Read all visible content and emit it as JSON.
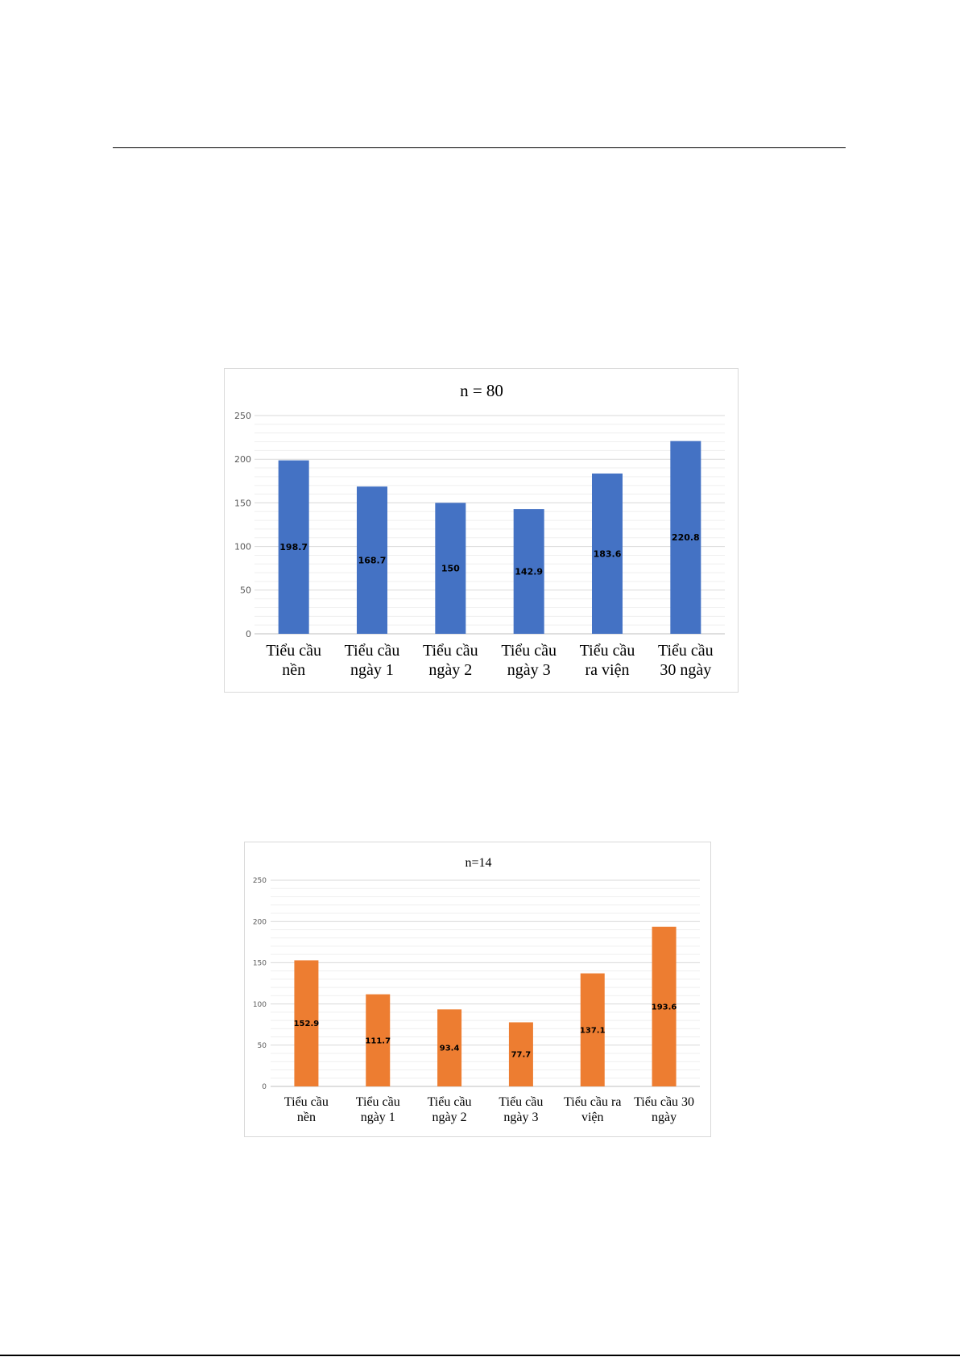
{
  "chart_data": [
    {
      "type": "bar",
      "title": "n = 80",
      "categories": [
        "Tiểu cầu nền",
        "Tiểu cầu ngày 1",
        "Tiểu cầu ngày 2",
        "Tiểu cầu ngày 3",
        "Tiểu cầu ra viện",
        "Tiểu cầu 30 ngày"
      ],
      "category_lines": [
        [
          "Tiểu cầu",
          "nền"
        ],
        [
          "Tiểu cầu",
          "ngày 1"
        ],
        [
          "Tiểu cầu",
          "ngày 2"
        ],
        [
          "Tiểu cầu",
          "ngày 3"
        ],
        [
          "Tiểu cầu",
          "ra viện"
        ],
        [
          "Tiểu cầu",
          "30 ngày"
        ]
      ],
      "values": [
        198.7,
        168.7,
        150,
        142.9,
        183.6,
        220.8
      ],
      "value_labels": [
        "198.7",
        "168.7",
        "150",
        "142.9",
        "183.6",
        "220.8"
      ],
      "ylim": [
        0,
        250
      ],
      "yticks": [
        0,
        50,
        100,
        150,
        200,
        250
      ],
      "grid": true,
      "bar_color": "#4472C4",
      "xlabel": "",
      "ylabel": ""
    },
    {
      "type": "bar",
      "title": "n=14",
      "categories": [
        "Tiểu cầu nền",
        "Tiểu cầu ngày 1",
        "Tiểu cầu ngày 2",
        "Tiểu cầu ngày 3",
        "Tiểu cầu ra viện",
        "Tiểu cầu 30 ngày"
      ],
      "category_lines": [
        [
          "Tiểu cầu",
          "nền"
        ],
        [
          "Tiểu cầu",
          "ngày 1"
        ],
        [
          "Tiểu cầu",
          "ngày 2"
        ],
        [
          "Tiểu cầu",
          "ngày 3"
        ],
        [
          "Tiểu cầu ra",
          "viện"
        ],
        [
          "Tiểu cầu 30",
          "ngày"
        ]
      ],
      "values": [
        152.9,
        111.7,
        93.4,
        77.7,
        137.1,
        193.6
      ],
      "value_labels": [
        "152.9",
        "111.7",
        "93.4",
        "77.7",
        "137.1",
        "193.6"
      ],
      "ylim": [
        0,
        250
      ],
      "yticks": [
        0,
        50,
        100,
        150,
        200,
        250
      ],
      "grid": true,
      "bar_color": "#ED7D31",
      "xlabel": "",
      "ylabel": ""
    }
  ]
}
